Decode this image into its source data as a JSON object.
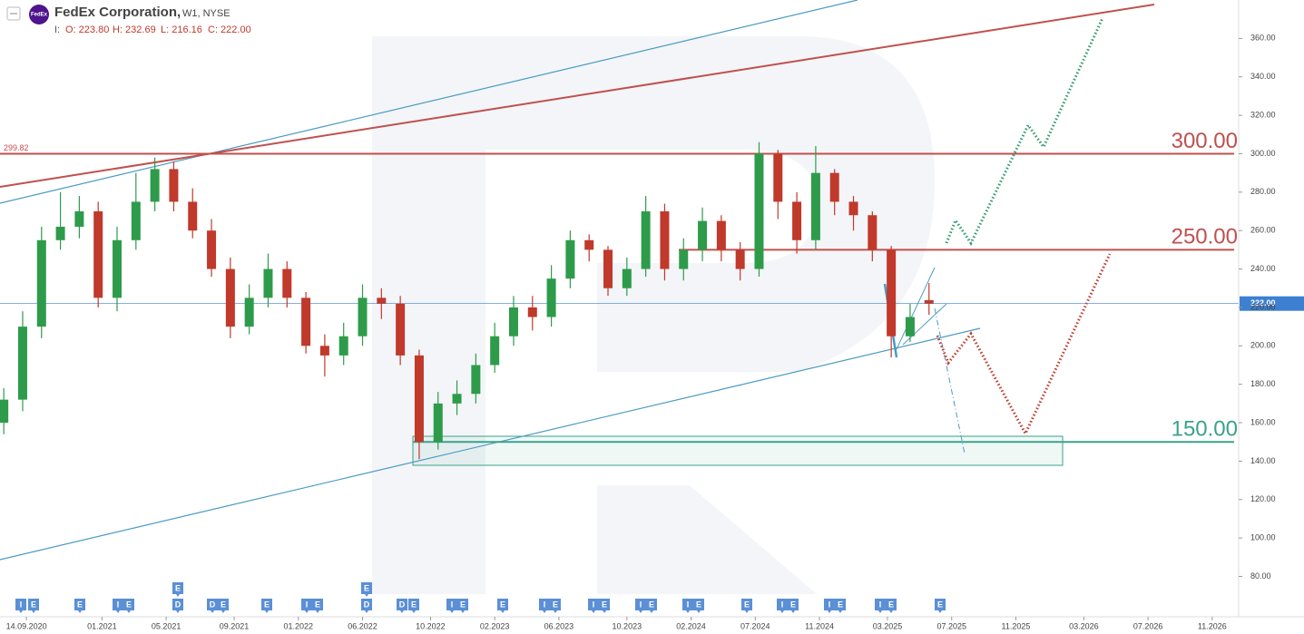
{
  "chart_data": {
    "type": "candlestick",
    "title": "FedEx Corporation,",
    "subtitle": "W1, NYSE",
    "logo": "FedEx",
    "ohlc_header": [
      "I:",
      "O: 223.80",
      "H: 232.69",
      "L: 216.16",
      "C: 222.00"
    ],
    "x": [
      -6,
      -1,
      4,
      9,
      14,
      19,
      24,
      29,
      34,
      39,
      44,
      49,
      54,
      59,
      64,
      69,
      74,
      79,
      84,
      89,
      94,
      99,
      104,
      109,
      114,
      119,
      124,
      129,
      134,
      139,
      144,
      149,
      154,
      159,
      164,
      169,
      174,
      179,
      184,
      189,
      194,
      199,
      204,
      209,
      214,
      219,
      224,
      229,
      234,
      239
    ],
    "open": [
      160,
      172,
      210,
      255,
      262,
      270,
      225,
      255,
      275,
      292,
      275,
      260,
      240,
      210,
      225,
      240,
      225,
      200,
      195,
      205,
      225,
      222,
      195,
      150,
      170,
      175,
      190,
      205,
      220,
      215,
      235,
      255,
      250,
      230,
      240,
      270,
      240,
      250,
      265,
      250,
      240,
      300,
      275,
      255,
      290,
      275,
      268,
      250,
      205,
      223.8
    ],
    "high": [
      178,
      218,
      262,
      280,
      278,
      275,
      262,
      290,
      298,
      296,
      282,
      266,
      246,
      232,
      248,
      244,
      228,
      206,
      212,
      232,
      230,
      226,
      198,
      176,
      182,
      196,
      212,
      226,
      226,
      242,
      260,
      258,
      252,
      246,
      278,
      274,
      256,
      272,
      268,
      254,
      306,
      302,
      280,
      304,
      292,
      278,
      270,
      252,
      222,
      232.69
    ],
    "low": [
      154,
      166,
      204,
      250,
      256,
      220,
      218,
      250,
      270,
      270,
      256,
      236,
      204,
      206,
      220,
      220,
      196,
      184,
      190,
      200,
      214,
      190,
      141,
      146,
      164,
      170,
      186,
      200,
      208,
      210,
      230,
      244,
      226,
      226,
      236,
      234,
      234,
      244,
      244,
      234,
      236,
      266,
      248,
      250,
      268,
      260,
      244,
      194,
      202,
      216.16
    ],
    "close": [
      172,
      210,
      255,
      262,
      270,
      225,
      255,
      275,
      292,
      275,
      260,
      240,
      210,
      225,
      240,
      225,
      200,
      195,
      205,
      225,
      222,
      195,
      150,
      170,
      175,
      190,
      205,
      220,
      215,
      235,
      255,
      250,
      230,
      240,
      270,
      240,
      250,
      265,
      250,
      240,
      300,
      275,
      255,
      290,
      275,
      268,
      250,
      205,
      215,
      222
    ],
    "up_color": "#2e9b4b",
    "down_color": "#c0392b",
    "xlim": [
      -7,
      321
    ],
    "xticks": [
      {
        "value": 0,
        "label": "14.09.2020"
      },
      {
        "value": 20,
        "label": "01.2021"
      },
      {
        "value": 37,
        "label": "05.2021"
      },
      {
        "value": 55,
        "label": "09.2021"
      },
      {
        "value": 72,
        "label": "01.2022"
      },
      {
        "value": 89,
        "label": "06.2022"
      },
      {
        "value": 107,
        "label": "10.2022"
      },
      {
        "value": 124,
        "label": "02.2023"
      },
      {
        "value": 141,
        "label": "06.2023"
      },
      {
        "value": 159,
        "label": "10.2023"
      },
      {
        "value": 176,
        "label": "02.2024"
      },
      {
        "value": 193,
        "label": "07.2024"
      },
      {
        "value": 210,
        "label": "11.2024"
      },
      {
        "value": 228,
        "label": "03.2025"
      },
      {
        "value": 245,
        "label": "07.2025"
      },
      {
        "value": 262,
        "label": "11.2025"
      },
      {
        "value": 280,
        "label": "03.2026"
      },
      {
        "value": 297,
        "label": "07.2026"
      },
      {
        "value": 314,
        "label": "11.2026"
      }
    ],
    "ylim": [
      59,
      380
    ],
    "yticks": [
      {
        "value": 80,
        "label": "80.00"
      },
      {
        "value": 100,
        "label": "100.00"
      },
      {
        "value": 120,
        "label": "120.00"
      },
      {
        "value": 140,
        "label": "140.00"
      },
      {
        "value": 160,
        "label": "160.00"
      },
      {
        "value": 180,
        "label": "180.00"
      },
      {
        "value": 200,
        "label": "200.00"
      },
      {
        "value": 220,
        "label": "220.00"
      },
      {
        "value": 240,
        "label": "240.00"
      },
      {
        "value": 260,
        "label": "260.00"
      },
      {
        "value": 280,
        "label": "280.00"
      },
      {
        "value": 300,
        "label": "300.00"
      },
      {
        "value": 320,
        "label": "320.00"
      },
      {
        "value": 340,
        "label": "340.00"
      },
      {
        "value": 360,
        "label": "360.00"
      }
    ],
    "levels": [
      {
        "value": 300,
        "label": "300.00",
        "color": "#c0504d"
      },
      {
        "value": 250,
        "label": "250.00",
        "color": "#c0504d"
      },
      {
        "value": 150,
        "label": "150.00",
        "color": "#3aa28a"
      }
    ],
    "left_level_label": {
      "value": 299.82,
      "label": "299.82"
    },
    "current_price": {
      "value": 222,
      "label": "222.00",
      "color": "#3d7fd0"
    },
    "events": [
      "I",
      "E",
      "E",
      "I",
      "E",
      "E",
      "D",
      "D",
      "E",
      "E",
      "I",
      "E",
      "E",
      "D",
      "D",
      "E",
      "I",
      "E",
      "E",
      "I",
      "E",
      "I",
      "E",
      "I",
      "E",
      "I",
      "E",
      "E",
      "I",
      "E",
      "I",
      "E",
      "I",
      "E",
      "E"
    ]
  }
}
